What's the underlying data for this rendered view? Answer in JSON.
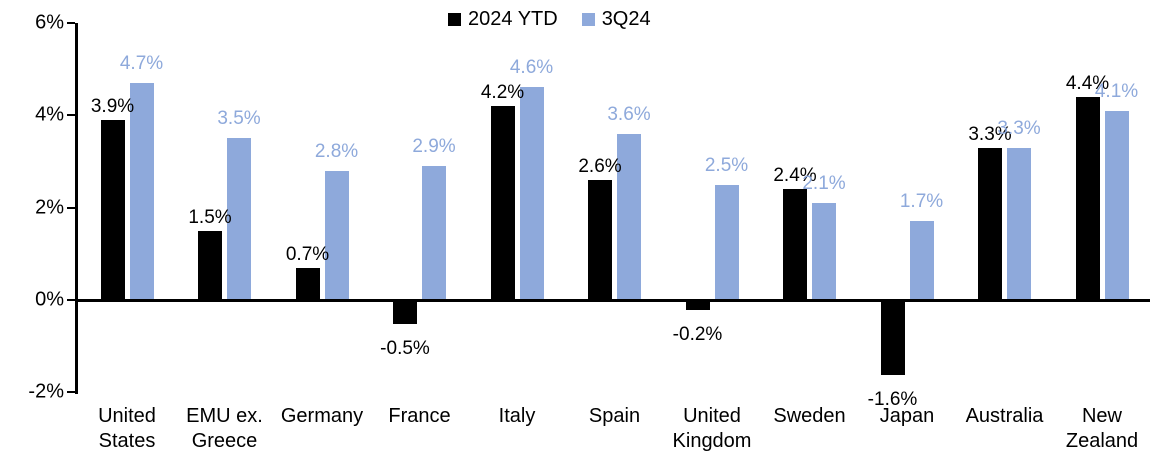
{
  "chart_data": {
    "type": "bar",
    "categories": [
      "United States",
      "EMU ex. Greece",
      "Germany",
      "France",
      "Italy",
      "Spain",
      "United Kingdom",
      "Sweden",
      "Japan",
      "Australia",
      "New Zealand"
    ],
    "series": [
      {
        "name": "2024 YTD",
        "color": "#000000",
        "values": [
          3.9,
          1.5,
          0.7,
          -0.5,
          4.2,
          2.6,
          -0.2,
          2.4,
          -1.6,
          3.3,
          4.4
        ],
        "labels": [
          "3.9%",
          "1.5%",
          "0.7%",
          "-0.5%",
          "4.2%",
          "2.6%",
          "-0.2%",
          "2.4%",
          "-1.6%",
          "3.3%",
          "4.4%"
        ]
      },
      {
        "name": "3Q24",
        "color": "#8EA9DB",
        "values": [
          4.7,
          3.5,
          2.8,
          2.9,
          4.6,
          3.6,
          2.5,
          2.1,
          1.7,
          3.3,
          4.1
        ],
        "labels": [
          "4.7%",
          "3.5%",
          "2.8%",
          "2.9%",
          "4.6%",
          "3.6%",
          "2.5%",
          "2.1%",
          "1.7%",
          "3.3%",
          "4.1%"
        ]
      }
    ],
    "ylim": [
      -2,
      6
    ],
    "yticks": [
      {
        "value": 6,
        "label": "6%"
      },
      {
        "value": 4,
        "label": "4%"
      },
      {
        "value": 2,
        "label": "2%"
      },
      {
        "value": 0,
        "label": "0%"
      },
      {
        "value": -2,
        "label": "-2%"
      }
    ],
    "legend_position": "top-center",
    "grid": false,
    "axis_color": "#000000",
    "background_color": "#FFFFFF"
  }
}
